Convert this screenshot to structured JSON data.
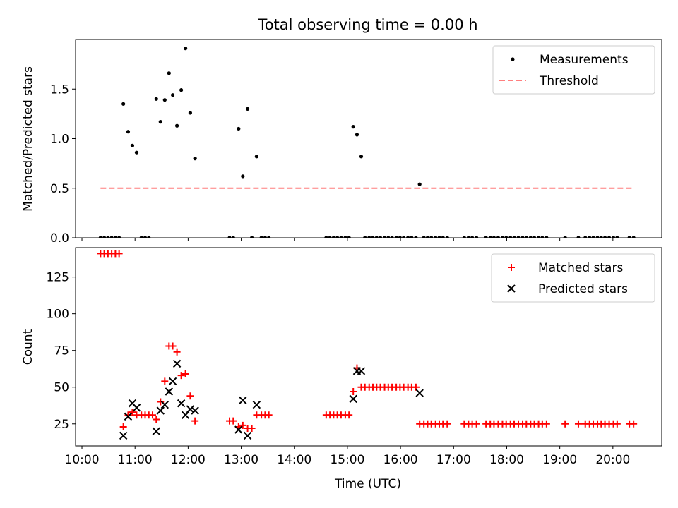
{
  "chart_data": {
    "title": "Total observing time = 0.00 h",
    "xlabel": "Time (UTC)",
    "x_tick_labels": [
      "10:00",
      "11:00",
      "12:00",
      "13:00",
      "14:00",
      "15:00",
      "16:00",
      "17:00",
      "18:00",
      "19:00",
      "20:00"
    ],
    "x_ticks_hours": [
      10,
      11,
      12,
      13,
      14,
      15,
      16,
      17,
      18,
      19,
      20
    ],
    "xlim_hours": [
      9.88,
      20.92
    ],
    "subplots": [
      {
        "type": "scatter",
        "ylabel": "Matched/Predicted stars",
        "ylim": [
          0,
          2.0
        ],
        "y_ticks": [
          0.0,
          0.5,
          1.0,
          1.5
        ],
        "y_tick_labels": [
          "0.0",
          "0.5",
          "1.0",
          "1.5"
        ],
        "legend": {
          "position": "upper right",
          "entries": [
            "Measurements",
            "Threshold"
          ]
        },
        "series": [
          {
            "name": "Measurements",
            "marker": "dot",
            "color": "#000000",
            "x_hours": [
              10.35,
              10.42,
              10.49,
              10.56,
              10.63,
              10.7,
              10.78,
              10.87,
              10.95,
              11.03,
              11.12,
              11.19,
              11.26,
              11.4,
              11.48,
              11.56,
              11.64,
              11.71,
              11.79,
              11.87,
              11.95,
              12.04,
              12.13,
              12.78,
              12.85,
              12.95,
              13.03,
              13.12,
              13.2,
              13.29,
              13.38,
              13.45,
              13.52,
              14.6,
              14.67,
              14.74,
              14.81,
              14.88,
              14.96,
              15.03,
              15.11,
              15.18,
              15.26,
              15.33,
              15.41,
              15.48,
              15.55,
              15.62,
              15.7,
              15.77,
              15.84,
              15.92,
              15.99,
              16.06,
              16.14,
              16.21,
              16.29,
              16.36,
              16.44,
              16.51,
              16.58,
              16.66,
              16.73,
              16.8,
              16.88,
              17.2,
              17.28,
              17.35,
              17.43,
              17.61,
              17.69,
              17.76,
              17.84,
              17.92,
              17.99,
              18.07,
              18.14,
              18.22,
              18.3,
              18.37,
              18.45,
              18.52,
              18.6,
              18.67,
              18.75,
              19.1,
              19.35,
              19.48,
              19.56,
              19.63,
              19.71,
              19.78,
              19.85,
              19.93,
              20.01,
              20.08,
              20.31,
              20.39
            ],
            "y": [
              0,
              0,
              0,
              0,
              0,
              0,
              1.35,
              1.07,
              0.93,
              0.86,
              0,
              0,
              0,
              1.4,
              1.17,
              1.39,
              1.66,
              1.44,
              1.13,
              1.49,
              1.91,
              1.26,
              0.8,
              0,
              0,
              1.1,
              0.62,
              1.3,
              0,
              0.82,
              0,
              0,
              0,
              0,
              0,
              0,
              0,
              0,
              0,
              0,
              1.12,
              1.04,
              0.82,
              0,
              0,
              0,
              0,
              0,
              0,
              0,
              0,
              0,
              0,
              0,
              0,
              0,
              0,
              0.54,
              0,
              0,
              0,
              0,
              0,
              0,
              0,
              0,
              0,
              0,
              0,
              0,
              0,
              0,
              0,
              0,
              0,
              0,
              0,
              0,
              0,
              0,
              0,
              0,
              0,
              0,
              0,
              0,
              0,
              0,
              0,
              0,
              0,
              0,
              0,
              0,
              0,
              0,
              0,
              0
            ]
          },
          {
            "name": "Threshold",
            "type": "line",
            "style": "dashed",
            "color": "#ff7f7f",
            "x_hours": [
              10.35,
              20.39
            ],
            "y": [
              0.5,
              0.5
            ]
          }
        ]
      },
      {
        "type": "scatter",
        "ylabel": "Count",
        "ylim": [
          10,
          145
        ],
        "y_ticks": [
          25,
          50,
          75,
          100,
          125
        ],
        "y_tick_labels": [
          "25",
          "50",
          "75",
          "100",
          "125"
        ],
        "legend": {
          "position": "upper right",
          "entries": [
            "Matched stars",
            "Predicted stars"
          ]
        },
        "series": [
          {
            "name": "Matched stars",
            "marker": "plus",
            "color": "#ff0000",
            "x_hours": [
              10.35,
              10.42,
              10.49,
              10.56,
              10.63,
              10.7,
              10.78,
              10.87,
              10.95,
              11.03,
              11.12,
              11.19,
              11.26,
              11.33,
              11.4,
              11.48,
              11.56,
              11.64,
              11.71,
              11.79,
              11.87,
              11.95,
              12.04,
              12.13,
              12.78,
              12.85,
              12.95,
              13.03,
              13.12,
              13.2,
              13.29,
              13.38,
              13.45,
              13.52,
              14.6,
              14.67,
              14.74,
              14.81,
              14.88,
              14.96,
              15.03,
              15.11,
              15.18,
              15.26,
              15.33,
              15.41,
              15.48,
              15.55,
              15.62,
              15.7,
              15.77,
              15.84,
              15.92,
              15.99,
              16.06,
              16.14,
              16.21,
              16.29,
              16.36,
              16.44,
              16.51,
              16.58,
              16.66,
              16.73,
              16.8,
              16.88,
              17.2,
              17.28,
              17.35,
              17.43,
              17.61,
              17.69,
              17.76,
              17.84,
              17.92,
              17.99,
              18.07,
              18.14,
              18.22,
              18.3,
              18.37,
              18.45,
              18.52,
              18.6,
              18.67,
              18.75,
              19.1,
              19.35,
              19.48,
              19.56,
              19.63,
              19.71,
              19.78,
              19.85,
              19.93,
              20.01,
              20.08,
              20.31,
              20.39
            ],
            "y": [
              141,
              141,
              141,
              141,
              141,
              141,
              23,
              31,
              33,
              31,
              31,
              31,
              31,
              31,
              28,
              40,
              54,
              78,
              78,
              74,
              58,
              59,
              44,
              27,
              27,
              27,
              23,
              24,
              22,
              22,
              31,
              31,
              31,
              31,
              31,
              31,
              31,
              31,
              31,
              31,
              31,
              47,
              63,
              50,
              50,
              50,
              50,
              50,
              50,
              50,
              50,
              50,
              50,
              50,
              50,
              50,
              50,
              50,
              25,
              25,
              25,
              25,
              25,
              25,
              25,
              25,
              25,
              25,
              25,
              25,
              25,
              25,
              25,
              25,
              25,
              25,
              25,
              25,
              25,
              25,
              25,
              25,
              25,
              25,
              25,
              25,
              25,
              25,
              25,
              25,
              25,
              25,
              25,
              25,
              25,
              25,
              25,
              25,
              25
            ]
          },
          {
            "name": "Predicted stars",
            "marker": "x",
            "color": "#000000",
            "x_hours": [
              10.78,
              10.87,
              10.95,
              11.03,
              11.4,
              11.48,
              11.56,
              11.64,
              11.71,
              11.79,
              11.87,
              11.95,
              12.04,
              12.13,
              12.95,
              13.03,
              13.12,
              13.29,
              15.11,
              15.18,
              15.26,
              16.36
            ],
            "y": [
              17,
              30,
              39,
              36,
              20,
              34,
              38,
              47,
              54,
              66,
              39,
              31,
              35,
              34,
              21,
              41,
              17,
              38,
              42,
              61,
              61,
              46
            ]
          }
        ]
      }
    ]
  }
}
